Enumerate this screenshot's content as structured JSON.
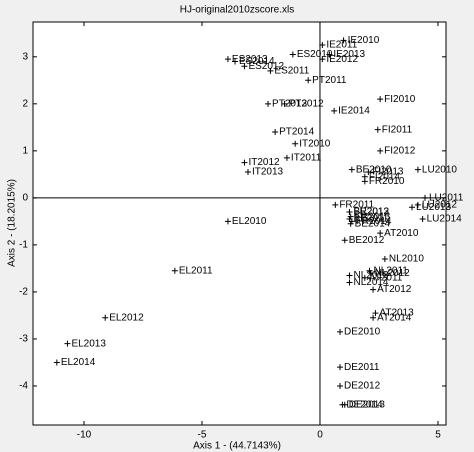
{
  "chart_data": {
    "type": "scatter",
    "title": "HJ-original2010zscore.xls",
    "xlabel": "Axis 1 - (44.7143%)",
    "ylabel": "Axis 2 - (18.2015%)",
    "xlim": [
      -12.16,
      5.34
    ],
    "ylim": [
      -4.83,
      3.74
    ],
    "xticks": [
      -10,
      -5,
      0,
      5
    ],
    "yticks": [
      -4,
      -3,
      -2,
      -1,
      0,
      1,
      2,
      3
    ],
    "color": "#000000",
    "labels": [
      "IE2010",
      "IE2011",
      "IE2012",
      "IE2013",
      "IE2014",
      "ES2010",
      "ES2011",
      "ES2012",
      "ES2013",
      "ES2014",
      "PT2011",
      "PT2012",
      "PT2013",
      "PT2014",
      "IT2010",
      "IT2011",
      "IT2012",
      "IT2013",
      "FI2010",
      "FI2011",
      "FI2012",
      "FI2013",
      "FI2014",
      "BE2010",
      "BE2011",
      "BE2012",
      "BE2013",
      "BE2014",
      "FR2010",
      "FR2011",
      "FR2012",
      "FR2013",
      "FR2014",
      "LU2010",
      "LU2011",
      "LU2012",
      "LU2013",
      "LU2014",
      "AT2010",
      "AT2011",
      "AT2012",
      "AT2013",
      "AT2014",
      "NL2010",
      "NL2011",
      "NL2012",
      "NL2013",
      "NL2014",
      "DE2010",
      "DE2011",
      "DE2012",
      "DE2013",
      "DE2014",
      "EL2010",
      "EL2011",
      "EL2012",
      "EL2013",
      "EL2014"
    ],
    "x": [
      1.0,
      0.1,
      0.1,
      0.4,
      0.6,
      -1.15,
      -2.1,
      -3.2,
      -3.9,
      -3.6,
      -0.5,
      -1.5,
      -2.2,
      -1.9,
      -1.05,
      -1.4,
      -3.2,
      -3.05,
      2.55,
      2.45,
      2.55,
      2.05,
      1.9,
      1.35,
      1.25,
      1.05,
      1.25,
      1.3,
      1.9,
      0.65,
      1.25,
      1.3,
      1.35,
      4.15,
      4.45,
      4.15,
      3.9,
      4.35,
      2.55,
      1.9,
      2.25,
      2.35,
      2.25,
      2.75,
      2.1,
      2.15,
      1.25,
      1.25,
      0.85,
      0.85,
      0.85,
      1.05,
      0.95,
      -3.9,
      -6.15,
      -9.1,
      -10.7,
      -11.15
    ],
    "values": [
      3.35,
      3.25,
      2.95,
      3.05,
      1.85,
      3.05,
      2.7,
      2.8,
      2.95,
      2.9,
      2.5,
      2.0,
      2.0,
      1.4,
      1.15,
      0.85,
      0.75,
      0.55,
      2.1,
      1.45,
      1.0,
      0.55,
      0.45,
      0.6,
      -0.45,
      -0.9,
      -0.3,
      -0.55,
      0.35,
      -0.15,
      -0.3,
      -0.4,
      -0.5,
      0.6,
      0.0,
      -0.15,
      -0.2,
      -0.45,
      -0.75,
      -1.7,
      -1.95,
      -2.45,
      -2.55,
      -1.3,
      -1.55,
      -1.6,
      -1.65,
      -1.8,
      -2.85,
      -3.6,
      -4.0,
      -4.4,
      -4.4,
      -0.5,
      -1.55,
      -2.55,
      -3.1,
      -3.5
    ]
  }
}
